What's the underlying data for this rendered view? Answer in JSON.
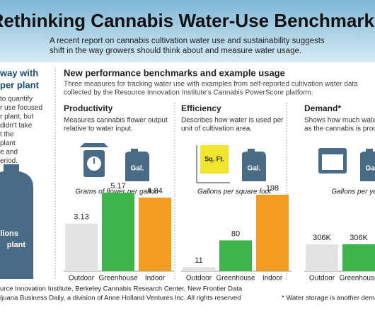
{
  "header": {
    "title": "Rethinking Cannabis Water-Use Benchmarks",
    "subtitle": [
      "A recent report on cannabis cultivation water use and sustainability suggests",
      "shift in the way growers should think about and measure water usage."
    ]
  },
  "left_panel": {
    "heading": [
      "way with",
      "per plant"
    ],
    "body": [
      "to quantify",
      "r use focused",
      "r plant, but",
      "didn't take",
      "t the",
      "plant",
      "e and",
      "eriod."
    ],
    "bottle_label": [
      "lions",
      "plant"
    ]
  },
  "section": {
    "title": "New performance benchmarks and example usage",
    "description": [
      "Three measures for tracking water use with examples from self-reported cultivation water data",
      "collected by the Resource Innovation Institute's Cannabis PowerScore platform."
    ]
  },
  "icons": {
    "gallon": "Gal.",
    "area": "Sq. Ft."
  },
  "chart_data": [
    {
      "type": "bar",
      "title": "Productivity",
      "description": [
        "Measures cannabis flower output",
        "relative to water input."
      ],
      "caption": "Grams of flower per gallon",
      "categories": [
        "Outdoor",
        "Greenhouse",
        "Indoor"
      ],
      "values": [
        3.13,
        5.17,
        4.84
      ],
      "colors": [
        "#e3e3e3",
        "#3db54a",
        "#f39c1f"
      ]
    },
    {
      "type": "bar",
      "title": "Efficiency",
      "description": [
        "Describes how water is used per",
        "unit of cultivation area."
      ],
      "caption": "Gallons per square foot",
      "categories": [
        "Outdoor",
        "Greenhouse",
        "Indoor"
      ],
      "values": [
        11,
        80,
        198
      ],
      "colors": [
        "#e3e3e3",
        "#3db54a",
        "#f39c1f"
      ]
    },
    {
      "type": "bar",
      "title": "Demand*",
      "description": [
        "Shows how much water",
        "as the cannabis is produced"
      ],
      "caption": "Gallons per year",
      "categories": [
        "Outdoor",
        "Greenhouse"
      ],
      "values": [
        306000,
        306000
      ],
      "value_labels": [
        "306K",
        "306K"
      ],
      "colors": [
        "#e3e3e3",
        "#3db54a"
      ]
    }
  ],
  "footer": {
    "source": [
      "urce Innovation Institute, Berkeley Cannabis Research Center, New Frontier Data",
      "ijuana Business Daily, a division of Anne Holland Ventures Inc. All rights reserved"
    ],
    "note": "* Water storage is another demand"
  }
}
